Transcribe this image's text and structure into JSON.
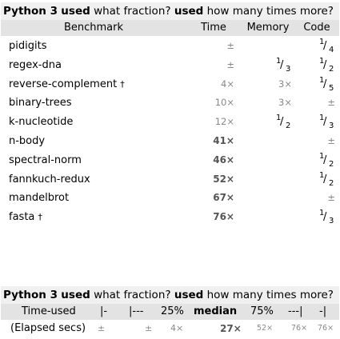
{
  "title1": {
    "lang": "Python 3",
    "used1": "used",
    "q1": "what fraction?",
    "used2": "used",
    "q2": "how many times more?"
  },
  "headers": {
    "benchmark": "Benchmark",
    "time": "Time",
    "memory": "Memory",
    "code": "Code"
  },
  "rows": [
    {
      "name": "pidigits",
      "dagger": "",
      "time": "±",
      "time_bold": false,
      "memory": "",
      "code": {
        "n": "1",
        "d": "4"
      }
    },
    {
      "name": "regex-dna",
      "dagger": "",
      "time": "±",
      "time_bold": false,
      "memory": {
        "n": "1",
        "d": "3"
      },
      "code": {
        "n": "1",
        "d": "2"
      }
    },
    {
      "name": "reverse-complement",
      "dagger": "†",
      "time": "4×",
      "time_bold": false,
      "memory": "3×",
      "code": {
        "n": "1",
        "d": "5"
      }
    },
    {
      "name": "binary-trees",
      "dagger": "",
      "time": "10×",
      "time_bold": false,
      "memory": "3×",
      "code": "±"
    },
    {
      "name": "k-nucleotide",
      "dagger": "",
      "time": "12×",
      "time_bold": false,
      "memory": {
        "n": "1",
        "d": "2"
      },
      "code": {
        "n": "1",
        "d": "3"
      }
    },
    {
      "name": "n-body",
      "dagger": "",
      "time": "41×",
      "time_bold": true,
      "memory": "",
      "code": "±"
    },
    {
      "name": "spectral-norm",
      "dagger": "",
      "time": "46×",
      "time_bold": true,
      "memory": "",
      "code": {
        "n": "1",
        "d": "2"
      }
    },
    {
      "name": "fannkuch-redux",
      "dagger": "",
      "time": "52×",
      "time_bold": true,
      "memory": "",
      "code": {
        "n": "1",
        "d": "2"
      }
    },
    {
      "name": "mandelbrot",
      "dagger": "",
      "time": "67×",
      "time_bold": true,
      "memory": "",
      "code": "±"
    },
    {
      "name": "fasta",
      "dagger": "†",
      "time": "76×",
      "time_bold": true,
      "memory": "",
      "code": {
        "n": "1",
        "d": "3"
      }
    }
  ],
  "summary": {
    "headers": {
      "time_used": "Time-used",
      "h1": "|-",
      "h2": "|---",
      "h3": "25%",
      "h4": "median",
      "h5": "75%",
      "h6": "---|",
      "h7": "-|"
    },
    "label": "(Elapsed secs)",
    "values": [
      "±",
      "±",
      "4×",
      "27×",
      "52×",
      "76×",
      "76×"
    ]
  }
}
